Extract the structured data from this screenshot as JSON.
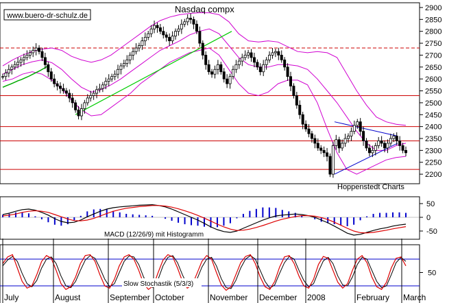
{
  "watermark": "www.buero-dr-schulz.de",
  "chart_data": {
    "type": "candlestick",
    "title": "Nasdaq compx",
    "source": "Hoppenstedt Charts",
    "x_axis": {
      "labels": [
        "July",
        "August",
        "September",
        "October",
        "November",
        "December",
        "2008",
        "February",
        "March"
      ]
    },
    "price_panel": {
      "y_ticks": [
        2200,
        2250,
        2300,
        2350,
        2400,
        2450,
        2500,
        2550,
        2600,
        2650,
        2700,
        2750,
        2800,
        2850,
        2900
      ],
      "ylim": [
        2160,
        2920
      ],
      "closes": [
        2610,
        2625,
        2640,
        2650,
        2660,
        2670,
        2680,
        2690,
        2700,
        2710,
        2720,
        2730,
        2715,
        2690,
        2660,
        2630,
        2600,
        2580,
        2570,
        2560,
        2550,
        2540,
        2520,
        2500,
        2470,
        2445,
        2475,
        2500,
        2520,
        2530,
        2540,
        2555,
        2560,
        2575,
        2590,
        2600,
        2610,
        2620,
        2640,
        2655,
        2665,
        2680,
        2700,
        2715,
        2730,
        2740,
        2760,
        2775,
        2790,
        2810,
        2825,
        2815,
        2800,
        2785,
        2775,
        2760,
        2780,
        2800,
        2810,
        2830,
        2840,
        2855,
        2850,
        2830,
        2800,
        2750,
        2700,
        2660,
        2630,
        2620,
        2640,
        2660,
        2630,
        2600,
        2580,
        2610,
        2640,
        2660,
        2675,
        2690,
        2700,
        2710,
        2690,
        2670,
        2650,
        2630,
        2660,
        2680,
        2700,
        2710,
        2715,
        2700,
        2680,
        2650,
        2610,
        2570,
        2530,
        2490,
        2450,
        2410,
        2390,
        2370,
        2350,
        2330,
        2310,
        2300,
        2290,
        2275,
        2200,
        2320,
        2345,
        2310,
        2330,
        2350,
        2360,
        2380,
        2405,
        2420,
        2380,
        2340,
        2310,
        2290,
        2300,
        2320,
        2340,
        2330,
        2310,
        2330,
        2350,
        2360,
        2340,
        2320,
        2300,
        2290
      ],
      "bollinger_upper": [
        2655,
        2680,
        2700,
        2715,
        2725,
        2730,
        2720,
        2695,
        2680,
        2670,
        2680,
        2700,
        2730,
        2760,
        2790,
        2820,
        2845,
        2860,
        2870,
        2875,
        2878,
        2878,
        2870,
        2840,
        2790,
        2760,
        2755,
        2760,
        2755,
        2735,
        2715,
        2710,
        2715,
        2710,
        2690,
        2620,
        2550,
        2490,
        2440,
        2420,
        2410,
        2405
      ],
      "bollinger_middle": [
        2620,
        2640,
        2660,
        2672,
        2680,
        2668,
        2640,
        2600,
        2565,
        2545,
        2555,
        2575,
        2600,
        2630,
        2660,
        2690,
        2720,
        2740,
        2760,
        2785,
        2800,
        2810,
        2790,
        2740,
        2690,
        2660,
        2650,
        2650,
        2660,
        2660,
        2655,
        2640,
        2600,
        2550,
        2500,
        2440,
        2380,
        2330,
        2300,
        2300,
        2320,
        2330
      ],
      "bollinger_lower": [
        2590,
        2600,
        2620,
        2630,
        2620,
        2595,
        2560,
        2510,
        2470,
        2445,
        2450,
        2480,
        2510,
        2540,
        2580,
        2610,
        2640,
        2670,
        2690,
        2710,
        2720,
        2730,
        2700,
        2640,
        2580,
        2540,
        2530,
        2545,
        2580,
        2595,
        2595,
        2575,
        2500,
        2390,
        2290,
        2220,
        2200,
        2220,
        2240,
        2260,
        2270,
        2275
      ],
      "moving_average_long": [
        2565,
        2572,
        2578,
        2585,
        2592,
        2598,
        2605,
        2612,
        2620,
        2628,
        2636,
        2645,
        2655
      ],
      "uptrend_line": {
        "from": [
          "August",
          2450
        ],
        "to": [
          "November",
          2800
        ]
      },
      "downtrend_line": {
        "from": [
          2420
        ],
        "to": [
          2360
        ]
      },
      "support_line": {
        "from": [
          2200
        ],
        "to": [
          2330
        ]
      },
      "horizontal_lines": [
        2730,
        2530,
        2400,
        2340,
        2220
      ]
    },
    "macd_panel": {
      "label": "MACD (12/26/9) mit Histogramm",
      "y_ticks": [
        "50",
        "0",
        "-50"
      ],
      "ylim": [
        -80,
        75
      ],
      "macd": [
        10,
        15,
        22,
        28,
        30,
        26,
        18,
        8,
        -5,
        -15,
        -20,
        -18,
        -10,
        2,
        12,
        22,
        30,
        35,
        38,
        40,
        42,
        44,
        45,
        46,
        43,
        38,
        30,
        20,
        10,
        0,
        -10,
        -22,
        -35,
        -45,
        -52,
        -55,
        -50,
        -40,
        -30,
        -20,
        -10,
        -2,
        5,
        8,
        10,
        12,
        10,
        6,
        0,
        -10,
        -20,
        -32,
        -45,
        -58,
        -65,
        -62,
        -55,
        -48,
        -42,
        -38,
        -32,
        -28,
        -25
      ],
      "signal": [
        5,
        8,
        12,
        18,
        22,
        24,
        22,
        18,
        10,
        2,
        -6,
        -12,
        -13,
        -10,
        -4,
        5,
        14,
        22,
        28,
        33,
        36,
        39,
        41,
        43,
        43,
        41,
        37,
        31,
        24,
        16,
        7,
        -3,
        -14,
        -25,
        -35,
        -43,
        -48,
        -47,
        -43,
        -37,
        -30,
        -22,
        -14,
        -7,
        -2,
        3,
        6,
        6,
        4,
        -1,
        -8,
        -18,
        -29,
        -40,
        -50,
        -56,
        -57,
        -55,
        -51,
        -47,
        -42,
        -38,
        -34
      ]
    },
    "stochastic_panel": {
      "label": "Slow Stochastik (5/3/3)",
      "y_ticks": [
        "50"
      ],
      "ylim": [
        0,
        100
      ],
      "reference_lines": [
        80,
        20
      ],
      "k": [
        70,
        85,
        90,
        60,
        30,
        15,
        20,
        45,
        75,
        88,
        82,
        55,
        25,
        12,
        18,
        40,
        70,
        88,
        90,
        75,
        45,
        20,
        15,
        35,
        65,
        85,
        90,
        80,
        55,
        25,
        12,
        20,
        50,
        78,
        90,
        85,
        60,
        30,
        15,
        22,
        48,
        75,
        88,
        80,
        50,
        22,
        10,
        18,
        45,
        72,
        86,
        90,
        70,
        40,
        18,
        12,
        30,
        62,
        85,
        88,
        70,
        42,
        20,
        15,
        35,
        68,
        86,
        82,
        55,
        28,
        15,
        25,
        55,
        80,
        88,
        72,
        40,
        18,
        12,
        28,
        60,
        82,
        85,
        65
      ],
      "d": [
        65,
        78,
        86,
        75,
        48,
        25,
        18,
        32,
        60,
        80,
        85,
        70,
        42,
        20,
        16,
        30,
        55,
        78,
        88,
        82,
        60,
        35,
        18,
        25,
        50,
        75,
        87,
        85,
        68,
        40,
        20,
        16,
        35,
        65,
        84,
        88,
        72,
        45,
        22,
        18,
        35,
        62,
        80,
        84,
        65,
        36,
        16,
        14,
        32,
        60,
        80,
        88,
        80,
        55,
        30,
        15,
        22,
        48,
        72,
        86,
        80,
        55,
        32,
        18,
        25,
        52,
        76,
        84,
        70,
        42,
        22,
        20,
        40,
        68,
        84,
        80,
        55,
        30,
        16,
        20,
        45,
        72,
        84,
        75
      ]
    }
  }
}
